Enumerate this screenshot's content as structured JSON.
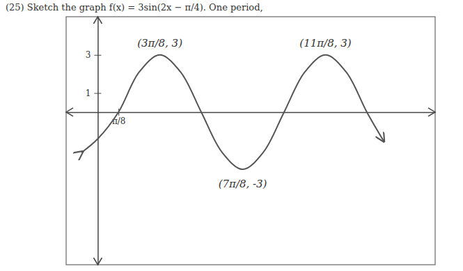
{
  "chart_data": {
    "type": "line",
    "title": "(25)  Sketch the graph f(x) = 3sin(2x − π/4).  One period,",
    "x": [
      -0.3,
      0,
      0.3927,
      0.7854,
      1.1781,
      1.5708,
      1.9635,
      2.3562,
      2.7489,
      3.1416,
      3.5343,
      3.927,
      4.3197,
      4.7124,
      5.1051,
      5.42
    ],
    "values": [
      -2.1,
      -1.4,
      0,
      2.1,
      3,
      2.1,
      0,
      -2.1,
      -3,
      -2.1,
      0,
      2.1,
      3,
      2.1,
      0,
      -1.5
    ],
    "color": "#555555",
    "xlim": [
      -0.6,
      6.4
    ],
    "ylim": [
      -8,
      5
    ],
    "xticks": [
      {
        "value": 0.3927,
        "label": "π/8"
      }
    ],
    "yticks": [
      1,
      3
    ],
    "grid": false,
    "annotations": [
      {
        "text": "(3π/8, 3)",
        "x": 1.1781,
        "y": 3
      },
      {
        "text": "(7π/8, -3)",
        "x": 2.7489,
        "y": -3
      },
      {
        "text": "(11π/8, 3)",
        "x": 4.3197,
        "y": 3
      }
    ]
  }
}
